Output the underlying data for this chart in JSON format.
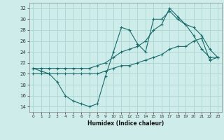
{
  "title": "",
  "xlabel": "Humidex (Indice chaleur)",
  "bg_color": "#ceecea",
  "grid_color": "#aed8d4",
  "line_color": "#1a6b6b",
  "xlim": [
    -0.5,
    23.5
  ],
  "ylim": [
    13,
    33
  ],
  "xticks": [
    0,
    1,
    2,
    3,
    4,
    5,
    6,
    7,
    8,
    9,
    10,
    11,
    12,
    13,
    14,
    15,
    16,
    17,
    18,
    19,
    20,
    21,
    22,
    23
  ],
  "yticks": [
    14,
    16,
    18,
    20,
    22,
    24,
    26,
    28,
    30,
    32
  ],
  "line1_x": [
    0,
    1,
    2,
    3,
    4,
    5,
    6,
    7,
    8,
    9,
    10,
    11,
    12,
    13,
    14,
    15,
    16,
    17,
    18,
    19,
    20,
    21,
    22,
    23
  ],
  "line1_y": [
    21,
    20.5,
    20,
    18.5,
    16,
    15,
    14.5,
    14,
    14.5,
    19.5,
    24,
    28.5,
    28,
    25.5,
    24,
    30,
    30,
    31.5,
    30,
    29,
    27,
    24.5,
    23,
    23
  ],
  "line2_x": [
    0,
    1,
    2,
    3,
    4,
    5,
    6,
    7,
    8,
    9,
    10,
    11,
    12,
    13,
    14,
    15,
    16,
    17,
    18,
    19,
    20,
    21,
    22,
    23
  ],
  "line2_y": [
    21,
    21,
    21,
    21,
    21,
    21,
    21,
    21,
    21.5,
    22,
    23,
    24,
    24.5,
    25,
    26,
    28,
    29,
    32,
    30.5,
    29,
    28.5,
    27,
    24.5,
    23
  ],
  "line3_x": [
    0,
    1,
    2,
    3,
    4,
    5,
    6,
    7,
    8,
    9,
    10,
    11,
    12,
    13,
    14,
    15,
    16,
    17,
    18,
    19,
    20,
    21,
    22,
    23
  ],
  "line3_y": [
    20,
    20,
    20,
    20,
    20,
    20,
    20,
    20,
    20,
    20.5,
    21,
    21.5,
    21.5,
    22,
    22.5,
    23,
    23.5,
    24.5,
    25,
    25,
    26,
    26.5,
    22.5,
    23
  ]
}
